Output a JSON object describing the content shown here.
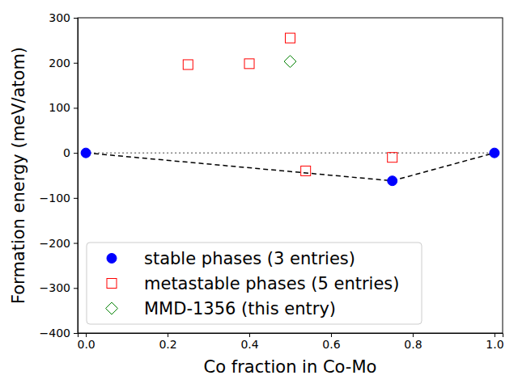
{
  "chart_data": {
    "type": "scatter",
    "x_label": "Co fraction in Co-Mo",
    "y_label": "Formation energy (meV/atom)",
    "xlim": [
      -0.02,
      1.02
    ],
    "ylim": [
      -400,
      300
    ],
    "xticks": [
      {
        "value": 0,
        "label": "0.0"
      },
      0.2,
      0.4,
      0.6,
      0.8,
      {
        "value": 1,
        "label": "1.0"
      }
    ],
    "yticks": [
      {
        "value": -400,
        "label": "−400"
      },
      {
        "value": -300,
        "label": "−300"
      },
      {
        "value": -200,
        "label": "−200"
      },
      {
        "value": -100,
        "label": "−100"
      },
      0,
      100,
      200,
      300
    ],
    "legend": "lower left",
    "series": [
      {
        "type": "line",
        "line_style": "dotted",
        "color": "gray",
        "x": [
          0,
          1
        ],
        "values": [
          0,
          0
        ]
      },
      {
        "type": "line",
        "line_style": "dashed",
        "color": "black",
        "x": [
          0,
          0.75,
          1
        ],
        "values": [
          0,
          -62,
          0
        ]
      },
      {
        "name": "stable phases (3 entries)",
        "type": "scatter",
        "marker": "circle",
        "color": "blue",
        "x": [
          0,
          0.75,
          1
        ],
        "values": [
          0,
          -62,
          0
        ]
      },
      {
        "name": "metastable phases (5 entries)",
        "type": "scatter",
        "marker": "square-open",
        "color": "red",
        "x": [
          0.25,
          0.4,
          0.5,
          0.538,
          0.75
        ],
        "values": [
          196,
          198,
          255,
          -40,
          -10
        ]
      },
      {
        "name": "MMD-1356 (this entry)",
        "type": "scatter",
        "marker": "diamond-open",
        "color": "green",
        "x": [
          0.5
        ],
        "values": [
          203
        ]
      }
    ]
  }
}
